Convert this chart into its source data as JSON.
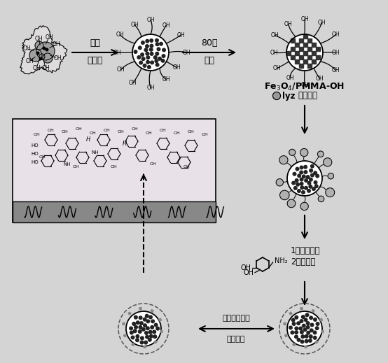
{
  "bg_color": "#d4d4d4",
  "white": "#ffffff",
  "black": "#000000",
  "dark_dot": "#222222",
  "gray_blob": "#999999",
  "checker_dark": "#333333",
  "box_bg": "#e8e4e8",
  "box_base": "#888888",
  "step1_label1": "超声",
  "step1_label2": "自组装",
  "step2_label1": "80度",
  "step2_label2": "聚合",
  "fe3o4_label": "Fe₃O₄/PMMA-OH",
  "lyz_text": "lyz",
  "ice_bath": "冰浴超声",
  "step_label1": "1）冰浴超声",
  "step_label2": "2）自聚合",
  "reconnect": "重新连接模板",
  "remove": "移除模板",
  "nh2": "NH₂",
  "oh": "OH",
  "fig_w": 5.54,
  "fig_h": 5.19,
  "dpi": 100
}
